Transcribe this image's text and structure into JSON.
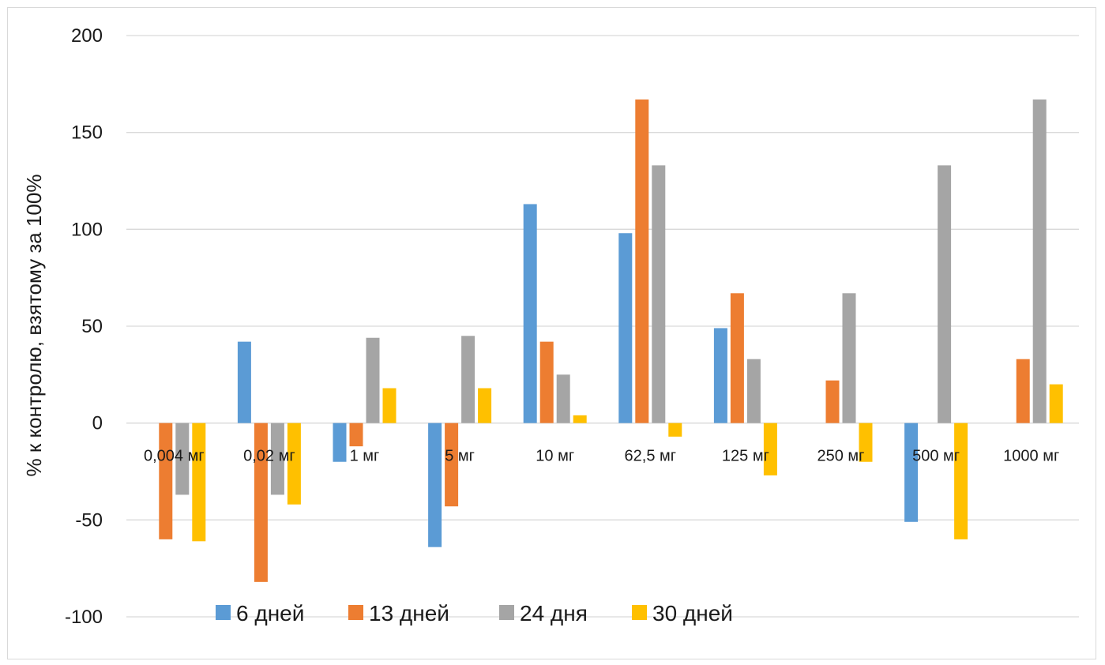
{
  "chart_data": {
    "type": "bar",
    "title": "",
    "xlabel": "",
    "ylabel": "% к  контролю, взятому  за 100%",
    "ylim": [
      -100,
      200
    ],
    "yticks": [
      -100,
      -50,
      0,
      50,
      100,
      150,
      200
    ],
    "grid": true,
    "legend_position": "bottom",
    "categories": [
      "0,004 мг",
      "0,02 мг",
      "1 мг",
      "5 мг",
      "10 мг",
      "62,5 мг",
      "125 мг",
      "250 мг",
      "500 мг",
      "1000 мг"
    ],
    "series": [
      {
        "name": "6 дней",
        "color": "#5b9bd5",
        "values": [
          0,
          42,
          -20,
          -64,
          113,
          98,
          49,
          0,
          -51,
          0
        ]
      },
      {
        "name": "13 дней",
        "color": "#ed7d31",
        "values": [
          -60,
          -82,
          -12,
          -43,
          42,
          167,
          67,
          22,
          0,
          33
        ]
      },
      {
        "name": "24 дня",
        "color": "#a5a5a5",
        "values": [
          -37,
          -37,
          44,
          45,
          25,
          133,
          33,
          67,
          133,
          167
        ]
      },
      {
        "name": "30 дней",
        "color": "#ffc000",
        "values": [
          -61,
          -42,
          18,
          18,
          4,
          -7,
          -27,
          -20,
          -60,
          20
        ]
      }
    ]
  }
}
